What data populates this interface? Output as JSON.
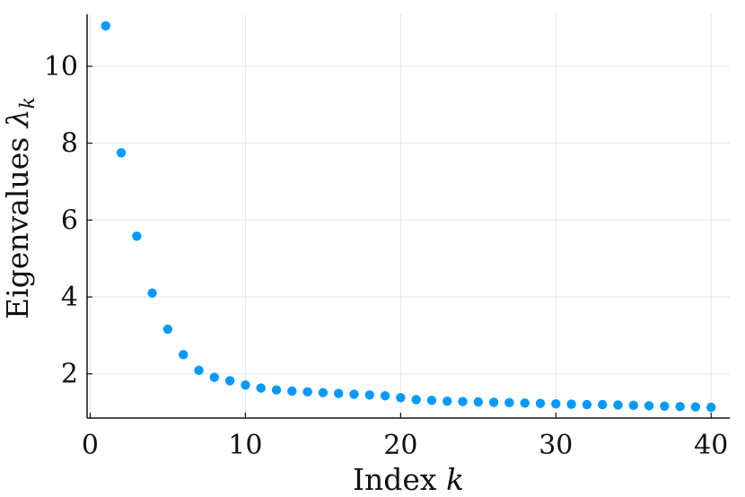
{
  "chart_data": {
    "type": "scatter",
    "xlabel_text": "Index ",
    "xlabel_var": "k",
    "ylabel_text": "Eigenvalues ",
    "ylabel_var": "λ",
    "ylabel_sub": "k",
    "xlim": [
      -0.2,
      41.2
    ],
    "ylim": [
      0.85,
      11.35
    ],
    "xticks": [
      0,
      10,
      20,
      30,
      40
    ],
    "yticks": [
      2,
      4,
      6,
      8,
      10
    ],
    "xtick_labels": [
      "0",
      "10",
      "20",
      "30",
      "40"
    ],
    "ytick_labels": [
      "2",
      "4",
      "6",
      "8",
      "10"
    ],
    "grid": true,
    "legend": "none",
    "marker_color": "#009AFA",
    "x": [
      1,
      2,
      3,
      4,
      5,
      6,
      7,
      8,
      9,
      10,
      11,
      12,
      13,
      14,
      15,
      16,
      17,
      18,
      19,
      20,
      21,
      22,
      23,
      24,
      25,
      26,
      27,
      28,
      29,
      30,
      31,
      32,
      33,
      34,
      35,
      36,
      37,
      38,
      39,
      40
    ],
    "y": [
      11.05,
      7.75,
      5.58,
      4.1,
      3.16,
      2.5,
      2.09,
      1.91,
      1.82,
      1.71,
      1.63,
      1.58,
      1.55,
      1.53,
      1.51,
      1.49,
      1.47,
      1.45,
      1.43,
      1.38,
      1.33,
      1.31,
      1.29,
      1.28,
      1.27,
      1.26,
      1.25,
      1.24,
      1.23,
      1.22,
      1.21,
      1.2,
      1.2,
      1.19,
      1.18,
      1.17,
      1.16,
      1.15,
      1.14,
      1.13
    ]
  }
}
